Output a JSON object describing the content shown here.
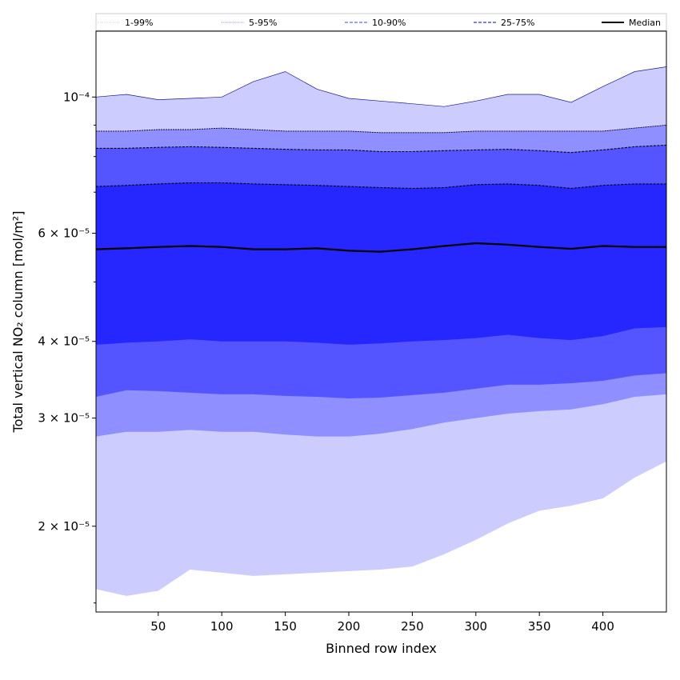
{
  "chart_data": {
    "type": "area",
    "xlabel": "Binned row index",
    "ylabel": "Total vertical NO₂ column [mol/m²]",
    "y_scale": "log",
    "xlim": [
      1,
      450
    ],
    "ylim": [
      1.45e-05,
      0.000128
    ],
    "x_ticks": [
      50,
      100,
      150,
      200,
      250,
      300,
      350,
      400
    ],
    "y_ticks": [
      {
        "value": 2e-05,
        "label": "2 × 10⁻⁵"
      },
      {
        "value": 3e-05,
        "label": "3 × 10⁻⁵"
      },
      {
        "value": 4e-05,
        "label": "4 × 10⁻⁵"
      },
      {
        "value": 6e-05,
        "label": "6 × 10⁻⁵"
      },
      {
        "value": 0.0001,
        "label": "10⁻⁴"
      }
    ],
    "y_minor_ticks": [
      1.5e-05,
      5e-05,
      7e-05,
      8e-05,
      9e-05
    ],
    "grid": false,
    "legend_position": "top",
    "x": [
      1,
      25,
      50,
      75,
      100,
      125,
      150,
      175,
      200,
      225,
      250,
      275,
      300,
      325,
      350,
      375,
      400,
      425,
      450
    ],
    "bands": [
      {
        "name": "1-99%",
        "color": "#ccccff",
        "lower": [
          1.58e-05,
          1.54e-05,
          1.57e-05,
          1.7e-05,
          1.68e-05,
          1.66e-05,
          1.67e-05,
          1.68e-05,
          1.69e-05,
          1.7e-05,
          1.72e-05,
          1.8e-05,
          1.9e-05,
          2.02e-05,
          2.12e-05,
          2.16e-05,
          2.22e-05,
          2.4e-05,
          2.55e-05
        ],
        "upper": [
          0.0001,
          0.000101,
          9.9e-05,
          9.95e-05,
          0.0001,
          0.000106,
          0.00011,
          0.000103,
          9.95e-05,
          9.85e-05,
          9.75e-05,
          9.65e-05,
          9.85e-05,
          0.000101,
          0.000101,
          9.8e-05,
          0.000104,
          0.00011,
          0.000112
        ]
      },
      {
        "name": "5-95%",
        "color": "#8f8fff",
        "lower": [
          2.8e-05,
          2.85e-05,
          2.85e-05,
          2.87e-05,
          2.85e-05,
          2.85e-05,
          2.82e-05,
          2.8e-05,
          2.8e-05,
          2.83e-05,
          2.88e-05,
          2.95e-05,
          3e-05,
          3.05e-05,
          3.08e-05,
          3.1e-05,
          3.16e-05,
          3.25e-05,
          3.28e-05
        ],
        "upper": [
          8.8e-05,
          8.8e-05,
          8.85e-05,
          8.85e-05,
          8.9e-05,
          8.85e-05,
          8.8e-05,
          8.8e-05,
          8.8e-05,
          8.75e-05,
          8.75e-05,
          8.75e-05,
          8.8e-05,
          8.8e-05,
          8.8e-05,
          8.8e-05,
          8.8e-05,
          8.9e-05,
          9e-05
        ]
      },
      {
        "name": "10-90%",
        "color": "#5555ff",
        "lower": [
          3.25e-05,
          3.33e-05,
          3.32e-05,
          3.3e-05,
          3.28e-05,
          3.28e-05,
          3.26e-05,
          3.25e-05,
          3.23e-05,
          3.24e-05,
          3.27e-05,
          3.3e-05,
          3.35e-05,
          3.4e-05,
          3.4e-05,
          3.42e-05,
          3.45e-05,
          3.52e-05,
          3.55e-05
        ],
        "upper": [
          8.25e-05,
          8.25e-05,
          8.28e-05,
          8.3e-05,
          8.28e-05,
          8.25e-05,
          8.22e-05,
          8.2e-05,
          8.2e-05,
          8.15e-05,
          8.15e-05,
          8.18e-05,
          8.2e-05,
          8.22e-05,
          8.18e-05,
          8.12e-05,
          8.2e-05,
          8.3e-05,
          8.35e-05
        ]
      },
      {
        "name": "25-75%",
        "color": "#2626ff",
        "lower": [
          3.95e-05,
          3.98e-05,
          4e-05,
          4.03e-05,
          4e-05,
          4e-05,
          4e-05,
          3.98e-05,
          3.95e-05,
          3.97e-05,
          4e-05,
          4.02e-05,
          4.05e-05,
          4.1e-05,
          4.05e-05,
          4.02e-05,
          4.08e-05,
          4.2e-05,
          4.22e-05
        ],
        "upper": [
          7.15e-05,
          7.18e-05,
          7.22e-05,
          7.25e-05,
          7.25e-05,
          7.22e-05,
          7.2e-05,
          7.18e-05,
          7.15e-05,
          7.12e-05,
          7.1e-05,
          7.12e-05,
          7.2e-05,
          7.22e-05,
          7.18e-05,
          7.1e-05,
          7.18e-05,
          7.22e-05,
          7.22e-05
        ]
      }
    ],
    "series": [
      {
        "name": "Median",
        "color": "#000000",
        "values": [
          5.65e-05,
          5.67e-05,
          5.7e-05,
          5.72e-05,
          5.7e-05,
          5.65e-05,
          5.65e-05,
          5.67e-05,
          5.62e-05,
          5.6e-05,
          5.65e-05,
          5.72e-05,
          5.78e-05,
          5.75e-05,
          5.7e-05,
          5.66e-05,
          5.72e-05,
          5.7e-05,
          5.7e-05
        ]
      }
    ],
    "legend": [
      {
        "label": "1-99%",
        "color": "#ccccff",
        "style": "dotted"
      },
      {
        "label": "5-95%",
        "color": "#9090d0",
        "style": "dotted"
      },
      {
        "label": "10-90%",
        "color": "#6868ff",
        "style": "dashed"
      },
      {
        "label": "25-75%",
        "color": "#3030e0",
        "style": "dashed"
      },
      {
        "label": "Median",
        "color": "#000000",
        "style": "solid"
      }
    ]
  }
}
